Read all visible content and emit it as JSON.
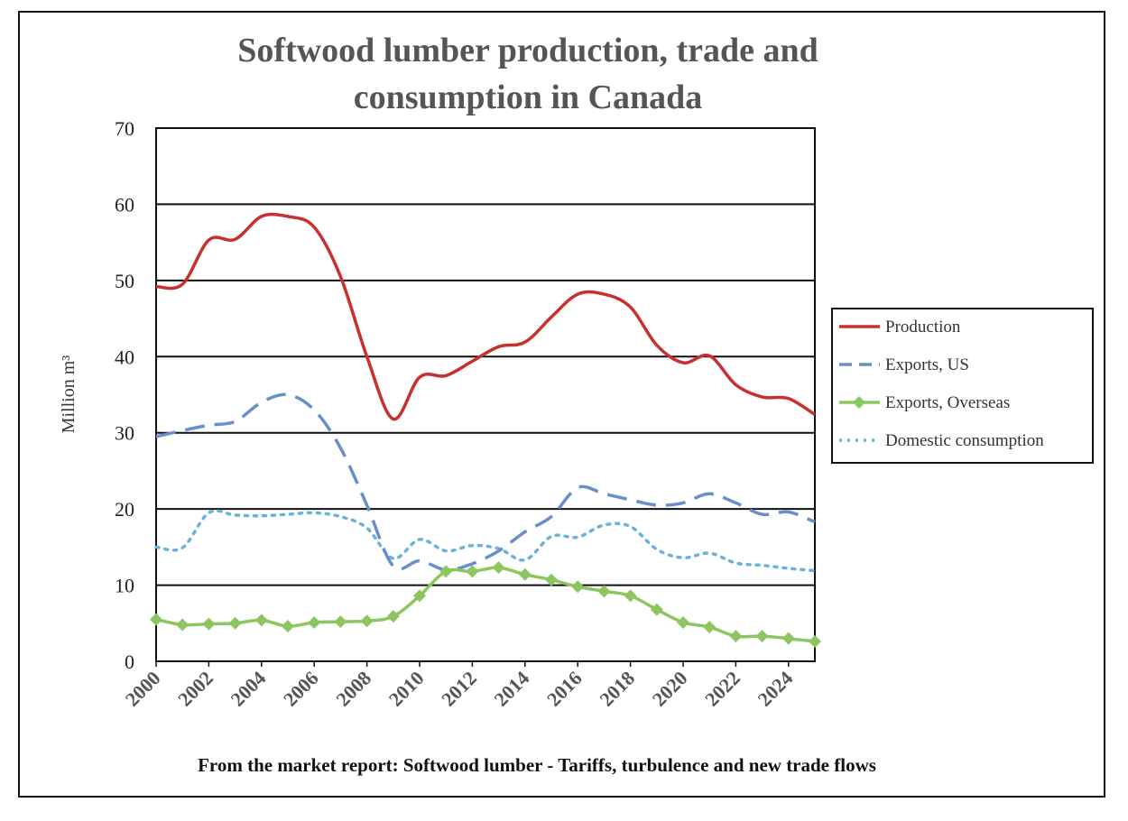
{
  "chart_data": {
    "type": "line",
    "title_line1": "Softwood lumber production, trade and",
    "title_line2": "consumption in Canada",
    "ylabel": "Million m³",
    "source": "From the market report: Softwood lumber - Tariffs, turbulence and new trade flows",
    "ylim": [
      0,
      70
    ],
    "xlim": [
      2000,
      2025
    ],
    "yticks": [
      0,
      10,
      20,
      30,
      40,
      50,
      60,
      70
    ],
    "xticks": [
      2000,
      2002,
      2004,
      2006,
      2008,
      2010,
      2012,
      2014,
      2016,
      2018,
      2020,
      2022,
      2024
    ],
    "grid": "horizontal",
    "legend_position": "right",
    "x": [
      2000,
      2001,
      2002,
      2003,
      2004,
      2005,
      2006,
      2007,
      2008,
      2009,
      2010,
      2011,
      2012,
      2013,
      2014,
      2015,
      2016,
      2017,
      2018,
      2019,
      2020,
      2021,
      2022,
      2023,
      2024,
      2025
    ],
    "series": [
      {
        "name": "Production",
        "color": "#c8302d",
        "style": "solid",
        "values": [
          49.2,
          49.5,
          55.3,
          55.4,
          58.4,
          58.4,
          57.0,
          50.5,
          40.0,
          31.8,
          37.3,
          37.5,
          39.4,
          41.3,
          41.9,
          45.2,
          48.2,
          48.2,
          46.5,
          41.5,
          39.2,
          40.1,
          36.3,
          34.7,
          34.5,
          32.4
        ]
      },
      {
        "name": "Exports, US",
        "color": "#6a8fc8",
        "style": "dashed",
        "values": [
          29.5,
          30.3,
          31.0,
          31.5,
          34.0,
          35.0,
          33.0,
          28.0,
          20.5,
          12.5,
          13.2,
          12.0,
          12.8,
          14.5,
          17.0,
          19.0,
          22.8,
          22.0,
          21.2,
          20.5,
          20.8,
          22.0,
          20.8,
          19.3,
          19.6,
          18.3
        ]
      },
      {
        "name": "Exports, Overseas",
        "color": "#8dc660",
        "style": "solid-diamond",
        "values": [
          5.5,
          4.8,
          4.9,
          5.0,
          5.4,
          4.6,
          5.1,
          5.2,
          5.3,
          5.9,
          8.6,
          11.8,
          11.8,
          12.3,
          11.4,
          10.7,
          9.8,
          9.2,
          8.6,
          6.8,
          5.1,
          4.5,
          3.3,
          3.3,
          3.0,
          2.6
        ]
      },
      {
        "name": "Domestic consumption",
        "color": "#6ab3d8",
        "style": "dotted",
        "values": [
          15.0,
          14.9,
          19.5,
          19.2,
          19.1,
          19.3,
          19.5,
          19.0,
          17.5,
          13.5,
          16.0,
          14.5,
          15.2,
          14.8,
          13.3,
          16.4,
          16.3,
          17.9,
          17.7,
          14.7,
          13.6,
          14.2,
          12.9,
          12.6,
          12.2,
          11.9
        ]
      }
    ]
  }
}
